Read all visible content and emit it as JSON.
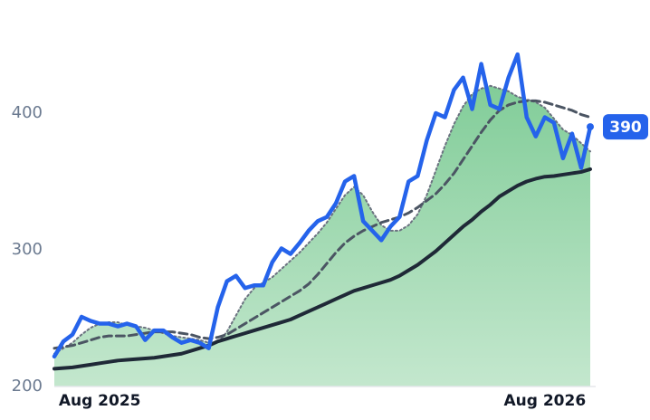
{
  "chart_data": {
    "type": "line",
    "categories": [
      null,
      null,
      null,
      null,
      null,
      "Aug 2025",
      null,
      null,
      null,
      null,
      null,
      null,
      null,
      null,
      null,
      null,
      null,
      null,
      null,
      null,
      null,
      null,
      null,
      null,
      null,
      null,
      null,
      null,
      null,
      null,
      null,
      null,
      null,
      null,
      null,
      null,
      null,
      null,
      null,
      null,
      null,
      null,
      null,
      null,
      null,
      null,
      null,
      null,
      null,
      null,
      null,
      null,
      null,
      null,
      "Aug 2026",
      null,
      null,
      null,
      null,
      null
    ],
    "series": [
      {
        "color": "#2563eb",
        "style": "solid",
        "width": 4.5,
        "values": [
          222,
          233,
          238,
          251,
          248,
          246,
          246,
          244,
          246,
          244,
          234,
          241,
          241,
          236,
          232,
          234,
          232,
          228,
          258,
          277,
          281,
          272,
          274,
          274,
          291,
          301,
          297,
          305,
          314,
          321,
          324,
          334,
          350,
          354,
          321,
          314,
          307,
          317,
          324,
          350,
          354,
          380,
          400,
          397,
          417,
          426,
          403,
          436,
          406,
          403,
          426,
          443,
          397,
          383,
          397,
          393,
          367,
          385,
          360,
          390
        ]
      },
      {
        "color": "#1f2937",
        "style": "solid",
        "width": 4,
        "values": [
          213,
          213.5,
          214,
          215,
          216,
          217,
          218,
          219,
          219.5,
          220,
          220.5,
          221,
          222,
          223,
          224,
          226,
          228,
          230,
          233,
          235,
          237,
          239,
          241,
          243,
          245,
          247,
          249,
          252,
          255,
          258,
          261,
          264,
          267,
          270,
          272,
          274,
          276,
          278,
          281,
          285,
          289,
          294,
          299,
          305,
          311,
          317,
          322,
          328,
          333,
          339,
          343,
          347,
          350,
          352,
          353.5,
          354,
          355,
          356,
          357,
          359
        ]
      },
      {
        "color": "#4b5563",
        "style": "dashed",
        "width": 3,
        "values": [
          228,
          229,
          230,
          232,
          234,
          236,
          237,
          237,
          237,
          238,
          239,
          240,
          240,
          240,
          239,
          238,
          236,
          235,
          236,
          238,
          242,
          246,
          250,
          254,
          258,
          262,
          266,
          270,
          275,
          282,
          290,
          298,
          305,
          310,
          314,
          317,
          320,
          322,
          324,
          327,
          331,
          336,
          341,
          348,
          356,
          366,
          376,
          386,
          395,
          402,
          406,
          408,
          409,
          409,
          408,
          406,
          404,
          402,
          399,
          397
        ]
      },
      {
        "color": "#6b7280",
        "style": "dotted",
        "width": 2,
        "area": "#86cf9c",
        "values": [
          224,
          228,
          232,
          238,
          243,
          246,
          247,
          247,
          245,
          244,
          243,
          241,
          239,
          237,
          236,
          235,
          234,
          232,
          232,
          240,
          252,
          264,
          272,
          276,
          280,
          286,
          292,
          298,
          305,
          312,
          320,
          330,
          340,
          346,
          340,
          328,
          318,
          314,
          314,
          318,
          326,
          340,
          358,
          376,
          392,
          405,
          414,
          418,
          420,
          418,
          416,
          412,
          410,
          408,
          404,
          396,
          388,
          384,
          378,
          372
        ]
      }
    ],
    "ylim": [
      200,
      460
    ],
    "yticks": [
      200,
      300,
      400
    ]
  }
}
